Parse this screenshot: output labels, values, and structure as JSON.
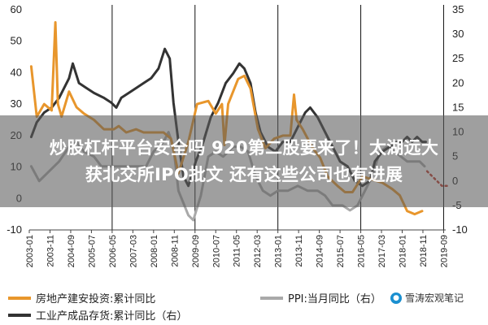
{
  "headline": {
    "line1": "炒股杠杆平台安全吗 920第二股要来了！太湖远大",
    "line2": "获北交所IPO批文 还有这些公司也有进展"
  },
  "watermark": {
    "text": "雪涛宏观笔记",
    "icon": "wechat-icon"
  },
  "chart_data": {
    "type": "line",
    "left_axis": {
      "ylim": [
        -10,
        60
      ],
      "ticks": [
        "60",
        "50",
        "40",
        "30",
        "20",
        "10",
        "0",
        "-10"
      ]
    },
    "right_axis": {
      "ylim": [
        -10,
        35
      ],
      "ticks": [
        "35",
        "30",
        "25",
        "20",
        "15",
        "10",
        "5",
        "0",
        "-5",
        "-10"
      ]
    },
    "x_ticks": [
      "2003-01",
      "2003-11",
      "2004-09",
      "2005-07",
      "2006-05",
      "2007-03",
      "2008-01",
      "2008-11",
      "2009-09",
      "2010-07",
      "2011-05",
      "2012-03",
      "2013-01",
      "2013-11",
      "2014-09",
      "2015-07",
      "2016-05",
      "2017-03",
      "2018-01",
      "2018-11",
      "2019-09"
    ],
    "vertical_lines_at": [
      "2006-05",
      "2009-09",
      "2013-01",
      "2016-05",
      "2019-09"
    ],
    "series": [
      {
        "name": "房地产建安投资:累计同比",
        "axis": "left",
        "color": "#E8962C",
        "values": [
          [
            2003.08,
            42
          ],
          [
            2003.3,
            26
          ],
          [
            2003.6,
            30
          ],
          [
            2003.9,
            28
          ],
          [
            2004.05,
            56
          ],
          [
            2004.15,
            30
          ],
          [
            2004.3,
            26
          ],
          [
            2004.6,
            34
          ],
          [
            2004.9,
            29
          ],
          [
            2005.2,
            27
          ],
          [
            2005.6,
            25
          ],
          [
            2006.0,
            22
          ],
          [
            2006.4,
            22
          ],
          [
            2006.6,
            23
          ],
          [
            2006.9,
            21
          ],
          [
            2007.3,
            22
          ],
          [
            2007.6,
            21
          ],
          [
            2008.0,
            21
          ],
          [
            2008.4,
            21
          ],
          [
            2008.7,
            19
          ],
          [
            2009.0,
            8
          ],
          [
            2009.4,
            18
          ],
          [
            2009.75,
            30
          ],
          [
            2010.2,
            31
          ],
          [
            2010.5,
            27
          ],
          [
            2010.75,
            30
          ],
          [
            2010.85,
            17
          ],
          [
            2011.0,
            30
          ],
          [
            2011.4,
            38
          ],
          [
            2011.65,
            39
          ],
          [
            2011.9,
            35
          ],
          [
            2012.2,
            22
          ],
          [
            2012.5,
            16
          ],
          [
            2012.85,
            19
          ],
          [
            2013.2,
            20
          ],
          [
            2013.5,
            20
          ],
          [
            2013.65,
            33
          ],
          [
            2013.75,
            25
          ],
          [
            2014.0,
            22
          ],
          [
            2014.4,
            16
          ],
          [
            2014.7,
            13
          ],
          [
            2015.0,
            7
          ],
          [
            2015.4,
            4
          ],
          [
            2015.7,
            2
          ],
          [
            2016.0,
            2
          ],
          [
            2016.4,
            7
          ],
          [
            2016.8,
            6
          ],
          [
            2017.2,
            5
          ],
          [
            2017.6,
            3
          ],
          [
            2017.9,
            1
          ],
          [
            2018.2,
            -4
          ],
          [
            2018.5,
            -5
          ],
          [
            2018.8,
            -4
          ]
        ]
      },
      {
        "name": "工业产成品存货:累计同比（右）",
        "axis": "right",
        "color": "#333333",
        "values": [
          [
            2003.08,
            9
          ],
          [
            2003.3,
            12
          ],
          [
            2003.6,
            14
          ],
          [
            2003.9,
            15
          ],
          [
            2004.2,
            17
          ],
          [
            2004.6,
            21
          ],
          [
            2004.75,
            24
          ],
          [
            2005.0,
            20
          ],
          [
            2005.3,
            19
          ],
          [
            2005.6,
            18
          ],
          [
            2006.0,
            17
          ],
          [
            2006.3,
            16
          ],
          [
            2006.5,
            15
          ],
          [
            2006.7,
            17
          ],
          [
            2007.0,
            18
          ],
          [
            2007.3,
            19
          ],
          [
            2007.6,
            20
          ],
          [
            2007.9,
            21
          ],
          [
            2008.2,
            23
          ],
          [
            2008.45,
            27
          ],
          [
            2008.65,
            25
          ],
          [
            2008.8,
            16
          ],
          [
            2009.0,
            8
          ],
          [
            2009.2,
            1
          ],
          [
            2009.4,
            -1
          ],
          [
            2009.7,
            4
          ],
          [
            2010.0,
            8
          ],
          [
            2010.3,
            13
          ],
          [
            2010.6,
            16
          ],
          [
            2010.9,
            20
          ],
          [
            2011.2,
            22
          ],
          [
            2011.45,
            24
          ],
          [
            2011.65,
            23
          ],
          [
            2011.9,
            20
          ],
          [
            2012.1,
            14
          ],
          [
            2012.3,
            10
          ],
          [
            2012.6,
            7
          ],
          [
            2012.9,
            6
          ],
          [
            2013.2,
            8
          ],
          [
            2013.5,
            8
          ],
          [
            2013.8,
            11
          ],
          [
            2014.1,
            14
          ],
          [
            2014.3,
            15
          ],
          [
            2014.6,
            13
          ],
          [
            2014.9,
            10
          ],
          [
            2015.2,
            7
          ],
          [
            2015.5,
            4
          ],
          [
            2015.8,
            3
          ],
          [
            2016.1,
            0
          ],
          [
            2016.4,
            -1
          ],
          [
            2016.7,
            0
          ],
          [
            2016.9,
            4
          ],
          [
            2017.2,
            6
          ],
          [
            2017.5,
            7
          ],
          [
            2017.8,
            8
          ],
          [
            2018.0,
            8
          ],
          [
            2018.2,
            9
          ],
          [
            2018.4,
            8
          ],
          [
            2018.6,
            9
          ],
          [
            2018.8,
            8
          ],
          [
            2018.95,
            8
          ]
        ],
        "forecast_color": "#C0392B",
        "forecast": [
          [
            2019.0,
            2
          ],
          [
            2019.2,
            1
          ],
          [
            2019.4,
            0
          ],
          [
            2019.6,
            -1
          ],
          [
            2019.8,
            -1
          ]
        ]
      },
      {
        "name": "PPI:当月同比（右）",
        "axis": "right",
        "color": "#A9A9A9",
        "values": [
          [
            2003.08,
            3
          ],
          [
            2003.4,
            0
          ],
          [
            2003.8,
            2
          ],
          [
            2004.2,
            4
          ],
          [
            2004.6,
            7
          ],
          [
            2004.9,
            8
          ],
          [
            2005.2,
            6
          ],
          [
            2005.6,
            5
          ],
          [
            2005.9,
            3
          ],
          [
            2006.2,
            3
          ],
          [
            2006.5,
            3
          ],
          [
            2006.9,
            3
          ],
          [
            2007.3,
            3
          ],
          [
            2007.7,
            3
          ],
          [
            2008.0,
            6
          ],
          [
            2008.4,
            8
          ],
          [
            2008.6,
            10
          ],
          [
            2008.8,
            7
          ],
          [
            2009.0,
            -2
          ],
          [
            2009.4,
            -7
          ],
          [
            2009.6,
            -8
          ],
          [
            2009.9,
            -3
          ],
          [
            2010.2,
            5
          ],
          [
            2010.5,
            6
          ],
          [
            2010.8,
            5
          ],
          [
            2011.2,
            7
          ],
          [
            2011.5,
            7
          ],
          [
            2011.8,
            6
          ],
          [
            2012.1,
            1
          ],
          [
            2012.4,
            -2
          ],
          [
            2012.7,
            -3
          ],
          [
            2013.0,
            -2
          ],
          [
            2013.4,
            -2
          ],
          [
            2013.8,
            -1
          ],
          [
            2014.2,
            -2
          ],
          [
            2014.6,
            -2
          ],
          [
            2014.9,
            -3
          ],
          [
            2015.2,
            -5
          ],
          [
            2015.6,
            -5
          ],
          [
            2015.9,
            -6
          ],
          [
            2016.2,
            -5
          ],
          [
            2016.5,
            -2
          ],
          [
            2016.8,
            1
          ],
          [
            2017.1,
            6
          ],
          [
            2017.4,
            7
          ],
          [
            2017.7,
            6
          ],
          [
            2017.95,
            5
          ],
          [
            2018.2,
            4
          ],
          [
            2018.5,
            4
          ],
          [
            2018.7,
            4
          ],
          [
            2018.9,
            3
          ]
        ]
      }
    ],
    "legend": [
      {
        "label": "房地产建安投资:累计同比",
        "color": "#E8962C"
      },
      {
        "label": "工业产成品存货:累计同比（右）",
        "color": "#333333"
      },
      {
        "label": "PPI:当月同比（右）",
        "color": "#A9A9A9"
      }
    ]
  }
}
